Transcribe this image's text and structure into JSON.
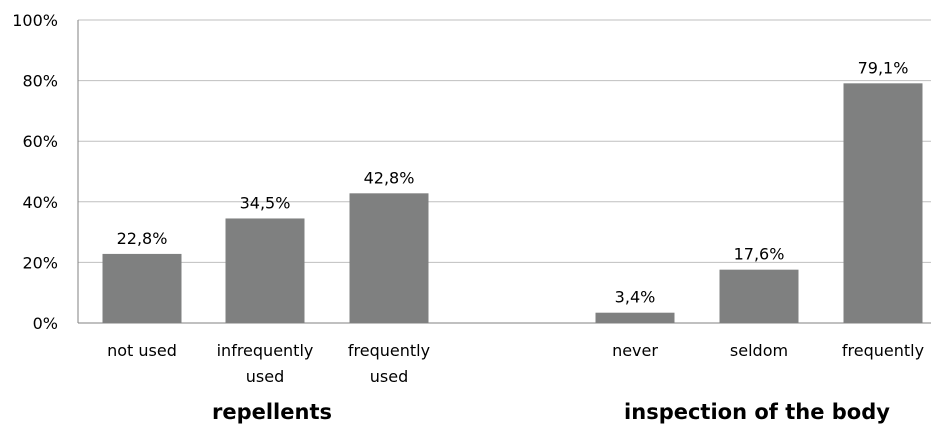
{
  "chart_data": {
    "type": "bar",
    "ylim": [
      0,
      100
    ],
    "yticks": [
      "0%",
      "20%",
      "40%",
      "60%",
      "80%",
      "100%"
    ],
    "grid": true,
    "groups": [
      {
        "name": "repellents",
        "categories": [
          [
            "not used"
          ],
          [
            "infrequently",
            "used"
          ],
          [
            "frequently",
            "used"
          ]
        ],
        "values": [
          22.8,
          34.5,
          42.8
        ],
        "labels": [
          "22,8%",
          "34,5%",
          "42,8%"
        ]
      },
      {
        "name": "inspection of the body",
        "categories": [
          [
            "never"
          ],
          [
            "seldom"
          ],
          [
            "frequently"
          ]
        ],
        "values": [
          3.4,
          17.6,
          79.1
        ],
        "labels": [
          "3,4%",
          "17,6%",
          "79,1%"
        ]
      }
    ],
    "colors": {
      "bar": "#7f8080",
      "grid": "#bfbfbf",
      "axis": "#808080"
    }
  }
}
